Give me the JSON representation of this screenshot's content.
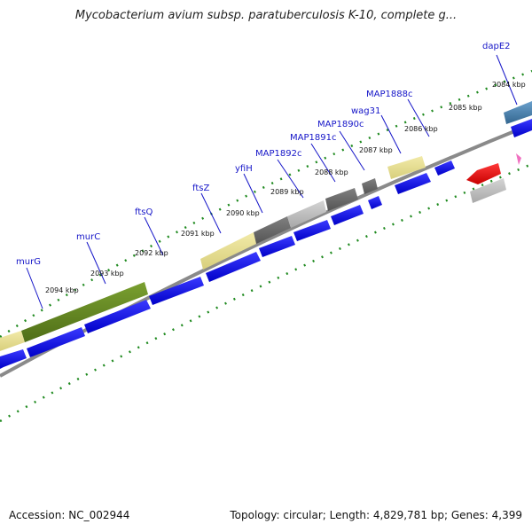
{
  "header": {
    "title": "Mycobacterium avium subsp. paratuberculosis K-10, complete g..."
  },
  "footer": {
    "accession": "Accession: NC_002944",
    "summary": "Topology: circular; Length: 4,829,781 bp; Genes: 4,399"
  },
  "ruler": {
    "ticks": [
      "2084 kbp",
      "2085 kbp",
      "2086 kbp",
      "2087 kbp",
      "2088 kbp",
      "2089 kbp",
      "2090 kbp",
      "2091 kbp",
      "2092 kbp",
      "2093 kbp",
      "2094 kbp"
    ]
  },
  "genes": [
    {
      "name": "dapE2"
    },
    {
      "name": "MAP1888c"
    },
    {
      "name": "wag31"
    },
    {
      "name": "MAP1890c"
    },
    {
      "name": "MAP1891c"
    },
    {
      "name": "MAP1892c"
    },
    {
      "name": "yfiH"
    },
    {
      "name": "ftsZ"
    },
    {
      "name": "ftsQ"
    },
    {
      "name": "murC"
    },
    {
      "name": "murG"
    }
  ],
  "colors": {
    "cds": "#1010e8",
    "backbone": "#8a8a8a",
    "ruler_dots": "#1f8a1f",
    "gene_label": "#1515c8",
    "olive": "#6b8e23",
    "khaki": "#e8e09a",
    "dark_gray": "#6e6e6e",
    "light_gray": "#bdbdbd",
    "steel_blue": "#4682b4",
    "red": "#ee1111",
    "pink": "#f070c0"
  }
}
